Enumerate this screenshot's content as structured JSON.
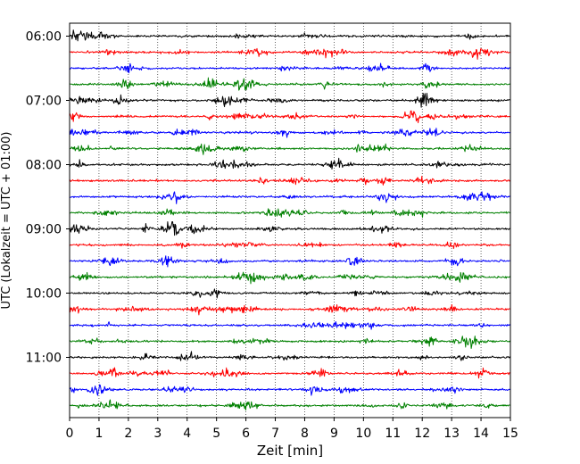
{
  "chart_data": {
    "type": "line",
    "title": "",
    "xlabel": "Zeit  [min]",
    "ylabel": "UTC (Lokalzeit = UTC + 01:00)",
    "xlim": [
      0,
      15
    ],
    "x_ticks": [
      0,
      1,
      2,
      3,
      4,
      5,
      6,
      7,
      8,
      9,
      10,
      11,
      12,
      13,
      14,
      15
    ],
    "x_tick_labels": [
      "0",
      "1",
      "2",
      "3",
      "4",
      "5",
      "6",
      "7",
      "8",
      "9",
      "10",
      "11",
      "12",
      "13",
      "14",
      "15"
    ],
    "grid": "vertical dotted lines at each minute",
    "y_ticks": [
      "06:00",
      "07:00",
      "08:00",
      "09:00",
      "10:00",
      "11:00"
    ],
    "trace_start_times": [
      "06:00",
      "06:15",
      "06:30",
      "06:45",
      "07:00",
      "07:15",
      "07:30",
      "07:45",
      "08:00",
      "08:15",
      "08:30",
      "08:45",
      "09:00",
      "09:15",
      "09:30",
      "09:45",
      "10:00",
      "10:15",
      "10:30",
      "10:45",
      "11:00",
      "11:15",
      "11:30",
      "11:45"
    ],
    "trace_colors": [
      "#000000",
      "#ff0000",
      "#0000ff",
      "#008000"
    ],
    "trace_duration_min": 15
  }
}
